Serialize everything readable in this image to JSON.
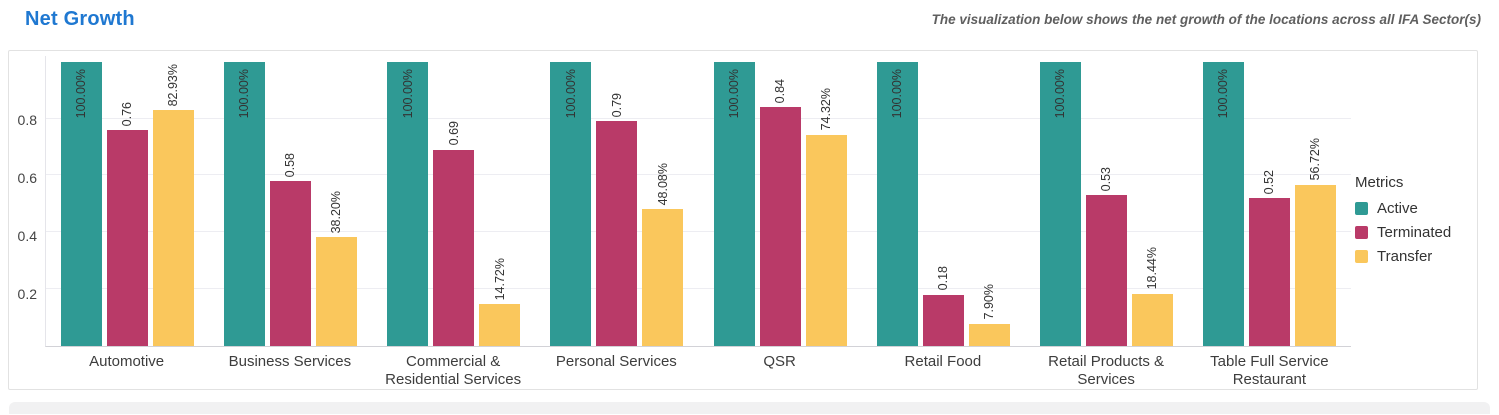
{
  "page": {
    "title": "Net Growth",
    "subtitle": "The visualization below shows the net growth of  the locations across all IFA Sector(s)"
  },
  "colors": {
    "title_blue": "#1f78d1",
    "active": "#2f9a94",
    "terminated": "#b93a68",
    "transfer": "#fac75c"
  },
  "legend": {
    "title": "Metrics",
    "items": [
      {
        "label": "Active"
      },
      {
        "label": "Terminated"
      },
      {
        "label": "Transfer"
      }
    ]
  },
  "chart_data": {
    "type": "bar",
    "title": "Net Growth",
    "categories": [
      "Automotive",
      "Business Services",
      "Commercial & Residential Services",
      "Personal Services",
      "QSR",
      "Retail Food",
      "Retail Products & Services",
      "Table Full Service Restaurant"
    ],
    "series": [
      {
        "name": "Active",
        "color": "#2f9a94",
        "values": [
          1.0,
          1.0,
          1.0,
          1.0,
          1.0,
          1.0,
          1.0,
          1.0
        ],
        "labels": [
          "100.00%",
          "100.00%",
          "100.00%",
          "100.00%",
          "100.00%",
          "100.00%",
          "100.00%",
          "100.00%"
        ],
        "labels_position": "inside"
      },
      {
        "name": "Terminated",
        "color": "#b93a68",
        "values": [
          0.76,
          0.58,
          0.69,
          0.79,
          0.84,
          0.18,
          0.53,
          0.52
        ],
        "labels": [
          "0.76",
          "0.58",
          "0.69",
          "0.79",
          "0.84",
          "0.18",
          "0.53",
          "0.52"
        ],
        "labels_position": "outside"
      },
      {
        "name": "Transfer",
        "color": "#fac75c",
        "values": [
          0.8293,
          0.382,
          0.1472,
          0.4808,
          0.7432,
          0.079,
          0.1844,
          0.5672
        ],
        "labels": [
          "82.93%",
          "38.20%",
          "14.72%",
          "48.08%",
          "74.32%",
          "7.90%",
          "18.44%",
          "56.72%"
        ],
        "labels_position": "outside"
      }
    ],
    "yticks": [
      0.2,
      0.4,
      0.6,
      0.8
    ],
    "ylim": [
      0,
      1.02
    ],
    "grid": "horizontal",
    "legend_position": "right",
    "legend_title": "Metrics"
  }
}
